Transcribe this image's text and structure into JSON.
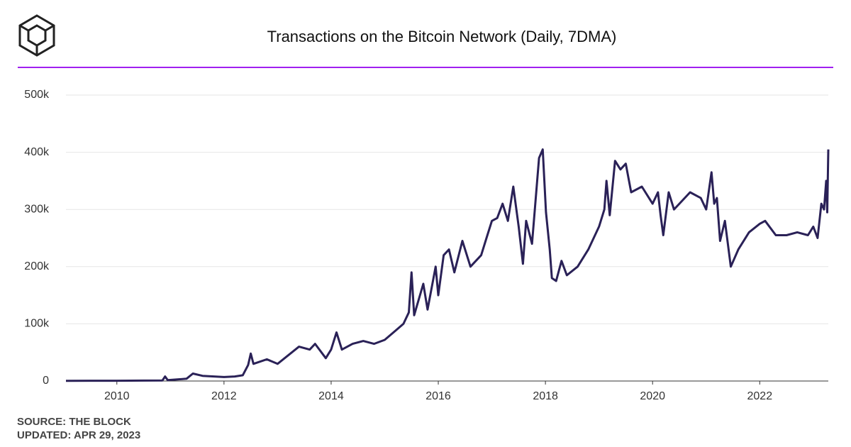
{
  "chart_data": {
    "type": "line",
    "title": "Transactions on the Bitcoin Network (Daily, 7DMA)",
    "source": "SOURCE: THE BLOCK",
    "updated": "UPDATED: APR 29, 2023",
    "color": "#2a2157",
    "grid": true,
    "xlim": [
      2009.05,
      2023.28
    ],
    "xticks": [
      2010,
      2012,
      2014,
      2016,
      2018,
      2020,
      2022
    ],
    "ylim": [
      0,
      500000
    ],
    "yticks": [
      0,
      {
        "value": 100000,
        "label": "100k"
      },
      {
        "value": 200000,
        "label": "200k"
      },
      {
        "value": 300000,
        "label": "300k"
      },
      {
        "value": 400000,
        "label": "400k"
      },
      {
        "value": 500000,
        "label": "500k"
      }
    ],
    "x": [
      2009.05,
      2009.5,
      2010,
      2010.5,
      2010.85,
      2010.9,
      2010.95,
      2011.3,
      2011.42,
      2011.6,
      2012,
      2012.2,
      2012.35,
      2012.45,
      2012.5,
      2012.55,
      2012.8,
      2013,
      2013.2,
      2013.4,
      2013.6,
      2013.7,
      2013.9,
      2014,
      2014.1,
      2014.2,
      2014.4,
      2014.6,
      2014.8,
      2015,
      2015.2,
      2015.35,
      2015.45,
      2015.5,
      2015.55,
      2015.72,
      2015.8,
      2015.95,
      2016,
      2016.1,
      2016.2,
      2016.3,
      2016.45,
      2016.6,
      2016.8,
      2016.9,
      2017,
      2017.1,
      2017.2,
      2017.3,
      2017.4,
      2017.5,
      2017.58,
      2017.64,
      2017.75,
      2017.88,
      2017.95,
      2018.01,
      2018.08,
      2018.12,
      2018.2,
      2018.3,
      2018.4,
      2018.6,
      2018.8,
      2019,
      2019.1,
      2019.14,
      2019.2,
      2019.3,
      2019.4,
      2019.5,
      2019.6,
      2019.8,
      2020,
      2020.1,
      2020.15,
      2020.2,
      2020.3,
      2020.4,
      2020.5,
      2020.7,
      2020.9,
      2021,
      2021.1,
      2021.15,
      2021.2,
      2021.26,
      2021.35,
      2021.46,
      2021.6,
      2021.8,
      2022,
      2022.1,
      2022.3,
      2022.5,
      2022.7,
      2022.9,
      2023,
      2023.08,
      2023.15,
      2023.2,
      2023.24,
      2023.26,
      2023.28
    ],
    "values": [
      200,
      500,
      500,
      800,
      1000,
      8000,
      1500,
      4000,
      13000,
      9000,
      7000,
      8000,
      10000,
      28000,
      48000,
      30000,
      38000,
      30000,
      45000,
      60000,
      55000,
      65000,
      40000,
      55000,
      85000,
      55000,
      65000,
      70000,
      65000,
      72000,
      88000,
      100000,
      120000,
      190000,
      115000,
      170000,
      125000,
      200000,
      150000,
      220000,
      230000,
      190000,
      245000,
      200000,
      220000,
      250000,
      280000,
      285000,
      310000,
      280000,
      340000,
      270000,
      205000,
      280000,
      240000,
      390000,
      405000,
      295000,
      230000,
      180000,
      175000,
      210000,
      185000,
      200000,
      230000,
      270000,
      300000,
      350000,
      290000,
      385000,
      370000,
      380000,
      330000,
      340000,
      310000,
      330000,
      290000,
      255000,
      330000,
      300000,
      310000,
      330000,
      320000,
      300000,
      365000,
      310000,
      320000,
      245000,
      280000,
      200000,
      230000,
      260000,
      275000,
      280000,
      255000,
      255000,
      260000,
      255000,
      270000,
      250000,
      310000,
      300000,
      350000,
      295000,
      405000
    ]
  }
}
